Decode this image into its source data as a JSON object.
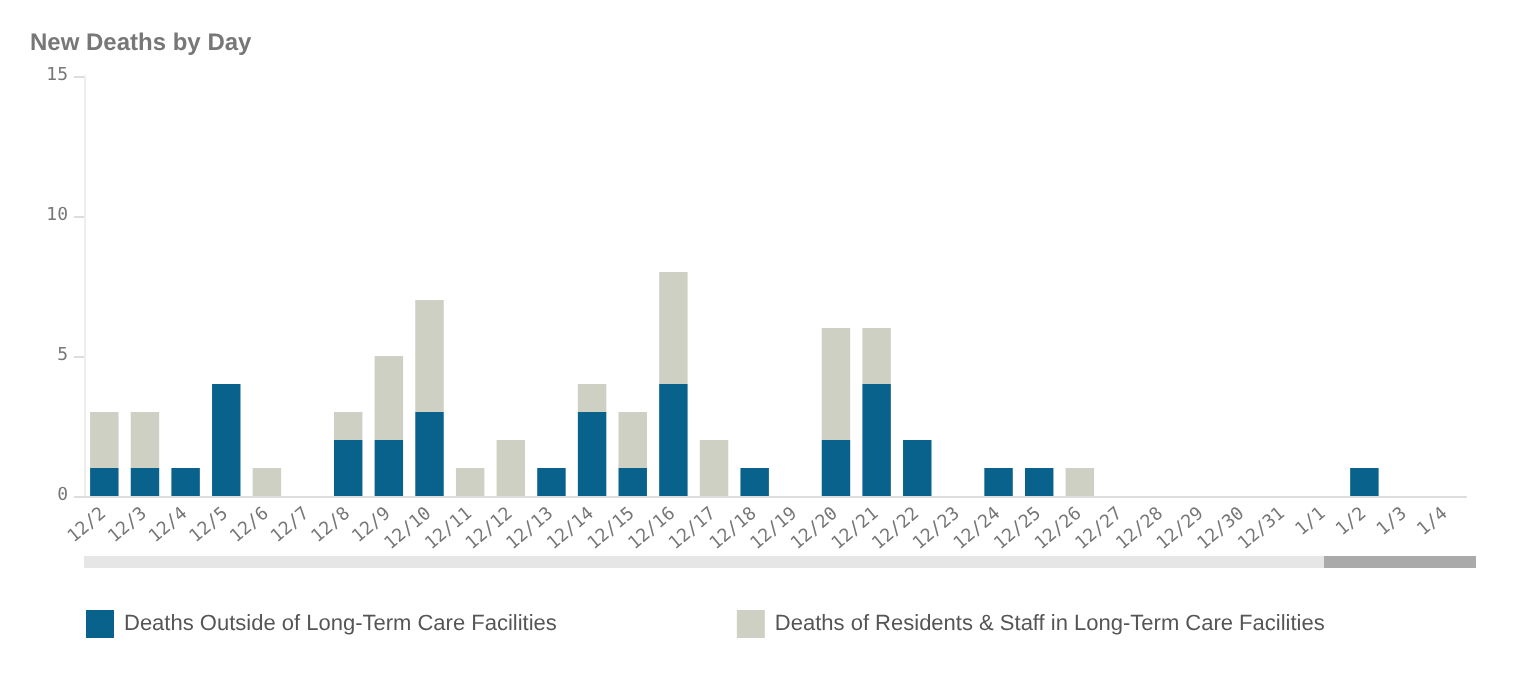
{
  "chart_data": {
    "type": "bar",
    "title": "New Deaths by Day",
    "stacked": true,
    "legend": "bottom",
    "grid": false,
    "categories": [
      "12/2",
      "12/3",
      "12/4",
      "12/5",
      "12/6",
      "12/7",
      "12/8",
      "12/9",
      "12/10",
      "12/11",
      "12/12",
      "12/13",
      "12/14",
      "12/15",
      "12/16",
      "12/17",
      "12/18",
      "12/19",
      "12/20",
      "12/21",
      "12/22",
      "12/23",
      "12/24",
      "12/25",
      "12/26",
      "12/27",
      "12/28",
      "12/29",
      "12/30",
      "12/31",
      "1/1",
      "1/2",
      "1/3",
      "1/4"
    ],
    "series": [
      {
        "name": "Deaths Outside of Long-Term Care Facilities",
        "color": "#08628b",
        "values": [
          1,
          1,
          1,
          4,
          0,
          0,
          2,
          2,
          3,
          0,
          0,
          1,
          3,
          1,
          4,
          0,
          1,
          0,
          2,
          4,
          2,
          0,
          1,
          1,
          0,
          0,
          0,
          0,
          0,
          0,
          0,
          1,
          0,
          0
        ]
      },
      {
        "name": "Deaths of Residents & Staff in Long-Term Care Facilities",
        "color": "#cdd0c2",
        "values": [
          2,
          2,
          0,
          0,
          1,
          0,
          1,
          3,
          4,
          1,
          2,
          0,
          1,
          2,
          4,
          2,
          0,
          0,
          4,
          2,
          0,
          0,
          0,
          0,
          1,
          0,
          0,
          0,
          0,
          0,
          0,
          0,
          0,
          0
        ]
      }
    ],
    "ylim": [
      0,
      15
    ],
    "yticks": [
      0,
      5,
      10,
      15
    ]
  }
}
